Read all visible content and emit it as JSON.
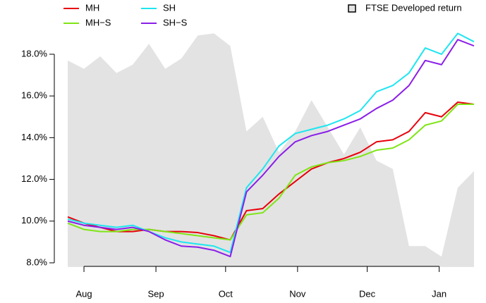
{
  "chart_data": {
    "type": "line",
    "x": [
      24,
      31,
      38,
      45,
      52,
      59,
      66,
      73,
      80,
      87,
      94,
      101,
      108,
      115,
      122,
      129,
      136,
      143,
      150,
      157,
      164,
      171,
      178,
      185,
      192,
      199
    ],
    "xlim": [
      24,
      199
    ],
    "xticks": [
      {
        "value": 31,
        "label": "Aug"
      },
      {
        "value": 62,
        "label": "Sep"
      },
      {
        "value": 92,
        "label": "Oct"
      },
      {
        "value": 123,
        "label": "Nov"
      },
      {
        "value": 153,
        "label": "Dec"
      },
      {
        "value": 184,
        "label": "Jan"
      }
    ],
    "ylim": [
      7.8,
      19.1
    ],
    "yticks": [
      {
        "value": 8,
        "label": "8.0%"
      },
      {
        "value": 10,
        "label": "10.0%"
      },
      {
        "value": 12,
        "label": "12.0%"
      },
      {
        "value": 14,
        "label": "14.0%"
      },
      {
        "value": 16,
        "label": "16.0%"
      },
      {
        "value": 18,
        "label": "18.0%"
      }
    ],
    "area": {
      "name": "FTSE Developed return",
      "color": "#e3e3e3",
      "values": [
        17.7,
        17.3,
        17.9,
        17.1,
        17.5,
        18.5,
        17.3,
        17.8,
        18.9,
        19.0,
        18.4,
        14.3,
        15.0,
        13.3,
        14.3,
        15.8,
        14.5,
        13.2,
        14.5,
        12.9,
        12.5,
        8.8,
        8.8,
        8.3,
        11.6,
        12.4
      ]
    },
    "series": [
      {
        "name": "MH",
        "color": "#e8000b",
        "values": [
          10.2,
          9.9,
          9.7,
          9.5,
          9.5,
          9.6,
          9.5,
          9.5,
          9.45,
          9.3,
          9.1,
          10.5,
          10.6,
          11.3,
          11.9,
          12.5,
          12.8,
          13.0,
          13.3,
          13.8,
          13.9,
          14.3,
          15.2,
          15.0,
          15.7,
          15.6
        ]
      },
      {
        "name": "MH−S",
        "color": "#7fe516",
        "values": [
          9.9,
          9.6,
          9.5,
          9.5,
          9.6,
          9.6,
          9.5,
          9.4,
          9.3,
          9.2,
          9.1,
          10.3,
          10.4,
          11.1,
          12.2,
          12.6,
          12.8,
          12.9,
          13.1,
          13.4,
          13.5,
          13.9,
          14.6,
          14.8,
          15.6,
          15.6
        ]
      },
      {
        "name": "SH",
        "color": "#1ee5f0",
        "values": [
          10.1,
          9.9,
          9.8,
          9.7,
          9.8,
          9.5,
          9.2,
          9.0,
          8.9,
          8.8,
          8.5,
          11.6,
          12.5,
          13.6,
          14.2,
          14.4,
          14.6,
          14.9,
          15.3,
          16.2,
          16.5,
          17.1,
          18.3,
          18.0,
          19.0,
          18.6
        ]
      },
      {
        "name": "SH−S",
        "color": "#8a1ee8",
        "values": [
          10.0,
          9.8,
          9.7,
          9.6,
          9.7,
          9.5,
          9.1,
          8.8,
          8.75,
          8.6,
          8.3,
          11.4,
          12.2,
          13.1,
          13.8,
          14.1,
          14.3,
          14.6,
          14.9,
          15.4,
          15.8,
          16.5,
          17.7,
          17.5,
          18.7,
          18.4
        ]
      }
    ]
  }
}
